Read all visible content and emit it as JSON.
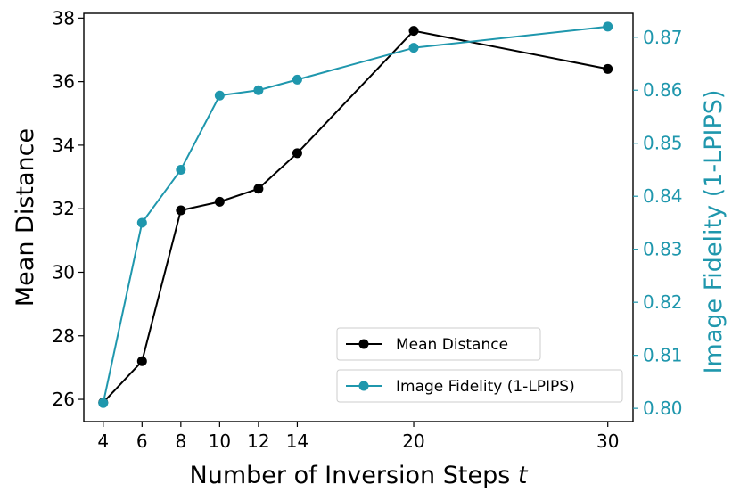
{
  "chart_data": {
    "type": "line",
    "title": "",
    "xlabel": "Number of Inversion Steps",
    "xlabel_symbol": "t",
    "x": [
      4,
      6,
      8,
      10,
      12,
      14,
      20,
      30
    ],
    "xticks": [
      "4",
      "6",
      "8",
      "10",
      "12",
      "14",
      "20",
      "30"
    ],
    "xlim": [
      3,
      31.3
    ],
    "left_axis": {
      "label": "Mean Distance",
      "ylim": [
        25.3,
        38.15
      ],
      "ticks": [
        26,
        28,
        30,
        32,
        34,
        36,
        38
      ],
      "tick_labels": [
        "26",
        "28",
        "30",
        "32",
        "34",
        "36",
        "38"
      ]
    },
    "right_axis": {
      "label": "Image Fidelity (1-LPIPS)",
      "ylim": [
        0.7975,
        0.8745
      ],
      "ticks": [
        0.8,
        0.81,
        0.82,
        0.83,
        0.84,
        0.85,
        0.86,
        0.87
      ],
      "tick_labels": [
        "0.80",
        "0.81",
        "0.82",
        "0.83",
        "0.84",
        "0.85",
        "0.86",
        "0.87"
      ]
    },
    "series": [
      {
        "name": "Mean Distance",
        "axis": "left",
        "color": "#000000",
        "values": [
          25.9,
          27.2,
          31.95,
          32.22,
          32.63,
          33.75,
          37.6,
          36.4
        ]
      },
      {
        "name": "Image Fidelity (1-LPIPS)",
        "axis": "right",
        "color": "#1f97ad",
        "values": [
          0.801,
          0.835,
          0.845,
          0.859,
          0.86,
          0.862,
          0.868,
          0.872
        ]
      }
    ],
    "legend": {
      "placement": "lower-right",
      "entries": [
        "Mean Distance",
        "Image Fidelity (1-LPIPS)"
      ]
    }
  }
}
